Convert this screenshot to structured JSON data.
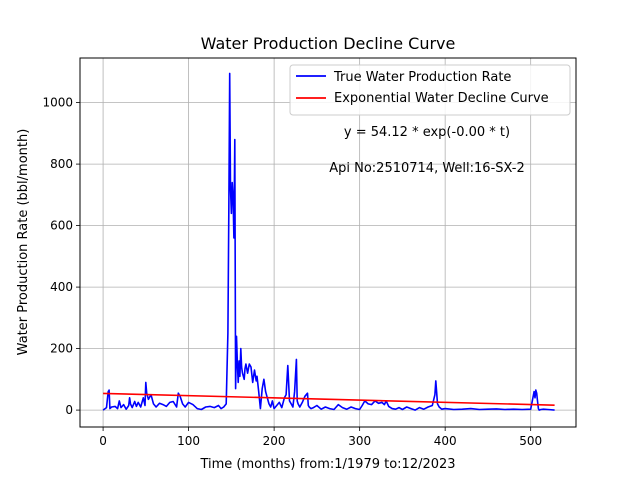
{
  "chart_data": {
    "type": "line",
    "title": "Water Production Decline Curve",
    "xlabel": "Time (months) from:1/1979 to:12/2023",
    "ylabel": "Water Production Rate (bbl/month)",
    "xlim": [
      -27,
      553
    ],
    "ylim": [
      -55,
      1145
    ],
    "xticks": [
      0,
      100,
      200,
      300,
      400,
      500
    ],
    "yticks": [
      0,
      200,
      400,
      600,
      800,
      1000
    ],
    "grid": true,
    "legend_position": "top-right",
    "annotations": [
      "y = 54.12 * exp(-0.00 * t)",
      "Api No:2510714, Well:16-SX-2"
    ],
    "series": [
      {
        "name": "True Water Production Rate",
        "color": "#0000ff",
        "x": [
          0,
          4,
          6,
          7,
          8,
          10,
          14,
          17,
          19,
          21,
          24,
          27,
          30,
          31,
          32,
          34,
          37,
          39,
          41,
          44,
          47,
          49,
          50,
          51,
          53,
          56,
          59,
          62,
          66,
          70,
          74,
          78,
          82,
          86,
          88,
          90,
          93,
          96,
          100,
          105,
          110,
          115,
          120,
          125,
          130,
          135,
          138,
          141,
          144,
          146,
          147,
          148,
          149,
          150,
          151,
          152,
          153,
          154,
          155,
          156,
          157,
          158,
          159,
          160,
          161,
          162,
          163,
          165,
          166,
          167,
          169,
          171,
          173,
          175,
          177,
          179,
          180,
          182,
          184,
          186,
          188,
          190,
          192,
          194,
          196,
          198,
          200,
          203,
          206,
          209,
          212,
          214,
          216,
          218,
          220,
          222,
          224,
          226,
          227,
          228,
          230,
          233,
          236,
          239,
          240,
          241,
          243,
          246,
          250,
          255,
          260,
          265,
          270,
          275,
          280,
          285,
          290,
          295,
          300,
          303,
          306,
          308,
          310,
          314,
          318,
          322,
          326,
          329,
          331,
          334,
          338,
          342,
          346,
          350,
          355,
          360,
          365,
          370,
          375,
          380,
          385,
          388,
          389,
          390,
          391,
          393,
          396,
          400,
          410,
          420,
          430,
          440,
          450,
          460,
          470,
          480,
          490,
          500,
          504,
          505,
          506,
          507,
          508,
          509,
          510,
          512,
          515,
          520,
          528
        ],
        "y": [
          0,
          8,
          60,
          65,
          5,
          10,
          12,
          5,
          30,
          8,
          18,
          3,
          15,
          40,
          20,
          8,
          28,
          12,
          25,
          10,
          40,
          15,
          90,
          55,
          35,
          50,
          20,
          10,
          22,
          18,
          12,
          25,
          28,
          10,
          55,
          45,
          20,
          10,
          25,
          18,
          5,
          2,
          10,
          12,
          8,
          15,
          5,
          10,
          20,
          250,
          640,
          1095,
          720,
          640,
          740,
          690,
          560,
          880,
          70,
          240,
          150,
          90,
          160,
          110,
          200,
          140,
          120,
          100,
          135,
          150,
          120,
          150,
          140,
          90,
          130,
          95,
          110,
          60,
          5,
          70,
          100,
          60,
          40,
          20,
          10,
          30,
          5,
          15,
          25,
          8,
          40,
          50,
          145,
          30,
          20,
          10,
          60,
          165,
          30,
          20,
          10,
          25,
          45,
          55,
          15,
          10,
          5,
          8,
          15,
          3,
          10,
          5,
          2,
          18,
          8,
          3,
          10,
          5,
          2,
          15,
          30,
          25,
          20,
          18,
          30,
          22,
          25,
          18,
          30,
          12,
          5,
          3,
          8,
          2,
          10,
          5,
          0,
          8,
          3,
          10,
          15,
          50,
          95,
          60,
          20,
          10,
          3,
          5,
          2,
          3,
          5,
          2,
          3,
          4,
          2,
          3,
          2,
          3,
          60,
          40,
          65,
          55,
          30,
          5,
          0,
          2,
          3,
          2,
          0
        ]
      },
      {
        "name": "Exponential Water Decline Curve",
        "color": "#ff0000",
        "x": [
          0,
          528
        ],
        "y": [
          54.12,
          16
        ]
      }
    ]
  }
}
